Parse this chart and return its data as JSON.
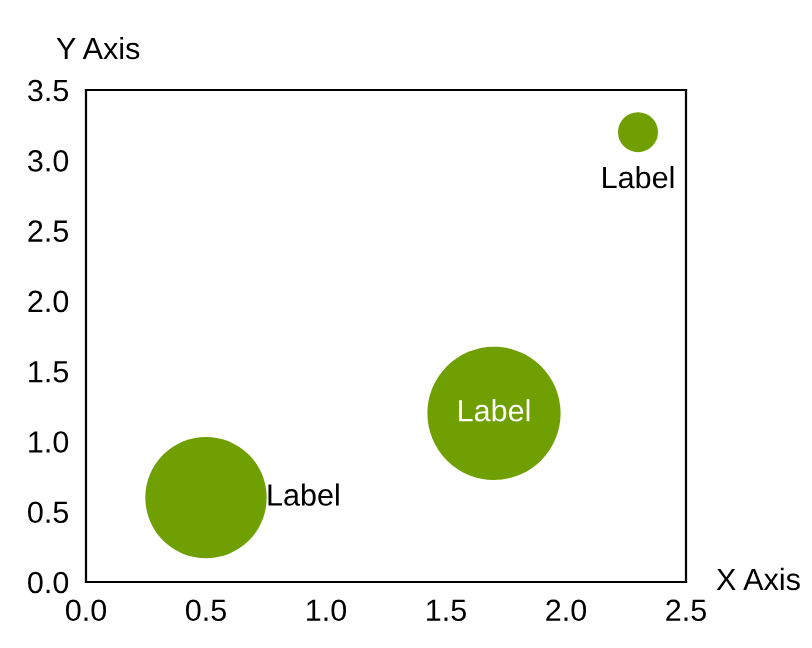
{
  "chart_data": {
    "type": "bubble",
    "xlabel": "X Axis",
    "ylabel": "Y Axis",
    "x": [
      0.5,
      1.7,
      2.3
    ],
    "values": [
      0.6,
      1.2,
      3.2
    ],
    "sizes": [
      0.83,
      1,
      0.09
    ],
    "color": "#6f9f00",
    "xlim": [
      0,
      2.5
    ],
    "ylim": [
      0,
      3.5
    ],
    "xticks": [
      {
        "value": 0,
        "label": "0.0"
      },
      0.5,
      {
        "value": 1,
        "label": "1.0"
      },
      1.5,
      {
        "value": 2,
        "label": "2.0"
      },
      2.5
    ],
    "yticks": [
      {
        "value": 0,
        "label": "0.0"
      },
      0.5,
      {
        "value": 1,
        "label": "1.0"
      },
      1.5,
      {
        "value": 2,
        "label": "2.0"
      },
      2.5,
      {
        "value": 3,
        "label": "3.0"
      },
      3.5
    ],
    "annotations": [
      {
        "text": "Label",
        "x": 0.5,
        "y": 0.6
      },
      {
        "text": "Label",
        "x": 1.7,
        "y": 1.2
      },
      {
        "text": "Label",
        "x": 2.3,
        "y": 3.2
      }
    ],
    "grid": false,
    "legend": false
  }
}
